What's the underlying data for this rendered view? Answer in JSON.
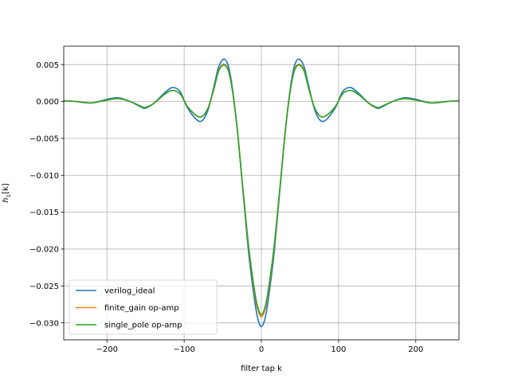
{
  "chart_data": {
    "type": "line",
    "xlabel": "filter tap k",
    "ylabel": "h",
    "ylabel_subscript": "1",
    "ylabel_suffix": "[k]",
    "xlim": [
      -256,
      256
    ],
    "ylim": [
      -0.0323,
      0.0075
    ],
    "xticks": [
      -200,
      -100,
      0,
      100,
      200
    ],
    "xtick_labels": [
      "−200",
      "−100",
      "0",
      "100",
      "200"
    ],
    "yticks": [
      0.005,
      0.0,
      -0.005,
      -0.01,
      -0.015,
      -0.02,
      -0.025,
      -0.03
    ],
    "ytick_labels": [
      "0.005",
      "0.000",
      "−0.005",
      "−0.010",
      "−0.015",
      "−0.020",
      "−0.025",
      "−0.030"
    ],
    "grid": true,
    "legend_position": "lower-left",
    "x": [
      -256,
      -240,
      -220,
      -200,
      -185,
      -170,
      -155,
      -150,
      -140,
      -125,
      -115,
      -105,
      -95,
      -80,
      -70,
      -62,
      -55,
      -47,
      -40,
      -32,
      -24,
      -16,
      -8,
      -4,
      0,
      4,
      8,
      16,
      24,
      32,
      40,
      47,
      55,
      62,
      70,
      80,
      95,
      105,
      115,
      125,
      140,
      150,
      155,
      170,
      185,
      200,
      220,
      240,
      256
    ],
    "series": [
      {
        "name": "verilog_ideal",
        "color": "#1f77b4",
        "values": [
          0.0001,
          0.0,
          -0.0002,
          0.0003,
          0.0005,
          0.0,
          -0.0008,
          -0.0009,
          -0.0003,
          0.0012,
          0.0019,
          0.0013,
          -0.001,
          -0.0027,
          -0.0014,
          0.0018,
          0.0048,
          0.0057,
          0.0035,
          -0.003,
          -0.012,
          -0.021,
          -0.0275,
          -0.0297,
          -0.0305,
          -0.0297,
          -0.0275,
          -0.021,
          -0.012,
          -0.003,
          0.0035,
          0.0057,
          0.0048,
          0.0018,
          -0.0014,
          -0.0027,
          -0.001,
          0.0013,
          0.0019,
          0.0012,
          -0.0003,
          -0.0009,
          -0.0008,
          0.0,
          0.0005,
          0.0003,
          -0.0002,
          0.0,
          0.0001
        ]
      },
      {
        "name": "finite_gain op-amp",
        "color": "#ff7f0e",
        "values": [
          0.0001,
          0.0,
          -0.0002,
          0.0002,
          0.0004,
          0.0,
          -0.0007,
          -0.0008,
          -0.0003,
          0.001,
          0.0015,
          0.001,
          -0.0008,
          -0.0021,
          -0.0011,
          0.0015,
          0.0043,
          0.005,
          0.0031,
          -0.003,
          -0.0118,
          -0.0203,
          -0.0265,
          -0.0284,
          -0.0292,
          -0.0284,
          -0.0265,
          -0.0203,
          -0.0118,
          -0.003,
          0.0031,
          0.005,
          0.0043,
          0.0015,
          -0.0011,
          -0.0021,
          -0.0008,
          0.001,
          0.0015,
          0.001,
          -0.0003,
          -0.0008,
          -0.0007,
          0.0,
          0.0004,
          0.0002,
          -0.0002,
          0.0,
          0.0001
        ]
      },
      {
        "name": "single_pole op-amp",
        "color": "#2ca02c",
        "values": [
          0.0001,
          0.0,
          -0.0002,
          0.0002,
          0.0004,
          0.0,
          -0.0007,
          -0.0008,
          -0.0003,
          0.001,
          0.0015,
          0.001,
          -0.0008,
          -0.0021,
          -0.0011,
          0.0015,
          0.0042,
          0.0049,
          0.003,
          -0.003,
          -0.0117,
          -0.0201,
          -0.0262,
          -0.0281,
          -0.0289,
          -0.0281,
          -0.0262,
          -0.0201,
          -0.0117,
          -0.003,
          0.003,
          0.0049,
          0.0042,
          0.0015,
          -0.0011,
          -0.0021,
          -0.0008,
          0.001,
          0.0015,
          0.001,
          -0.0003,
          -0.0008,
          -0.0007,
          0.0,
          0.0004,
          0.0002,
          -0.0002,
          0.0,
          0.0001
        ]
      }
    ]
  }
}
